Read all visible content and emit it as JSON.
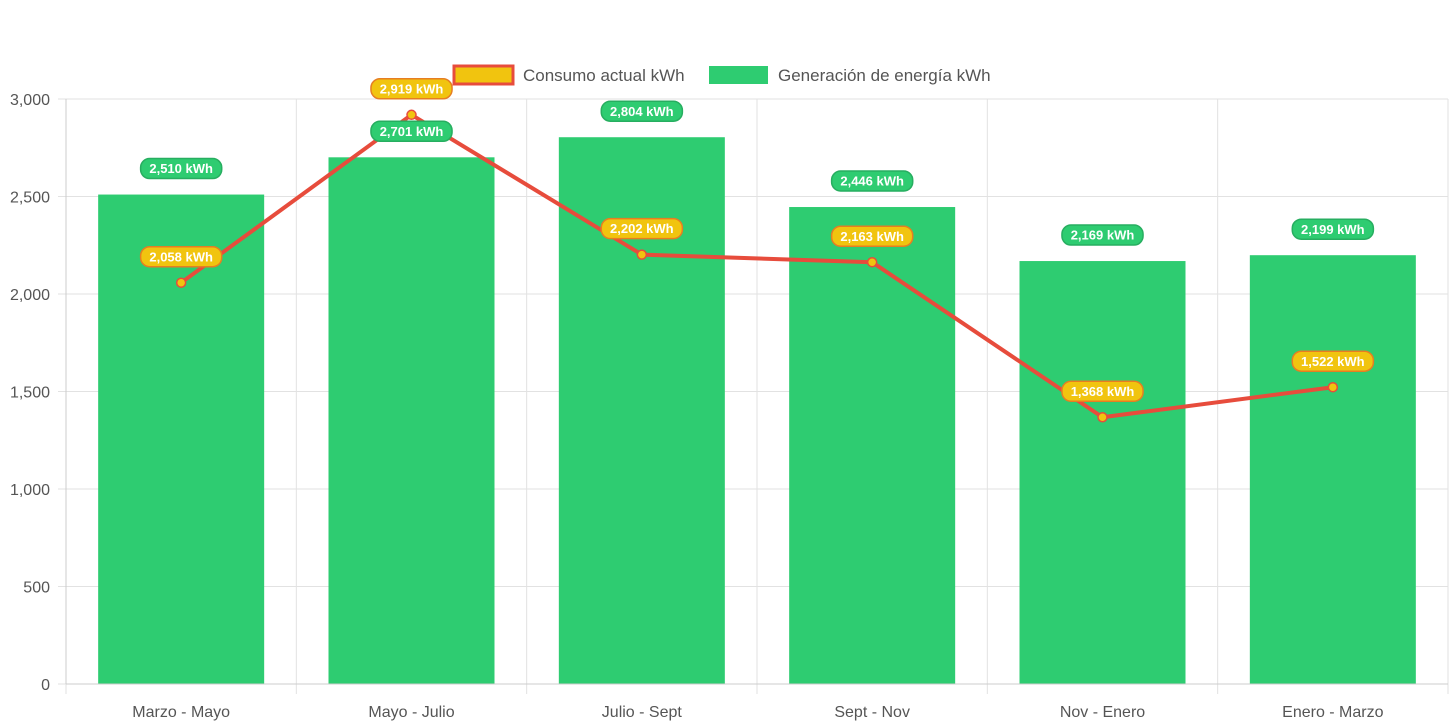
{
  "chart_data": {
    "type": "bar",
    "categories": [
      "Marzo - Mayo",
      "Mayo - Julio",
      "Julio - Sept",
      "Sept - Nov",
      "Nov - Enero",
      "Enero - Marzo"
    ],
    "series": [
      {
        "name": "Generación de energía kWh",
        "type": "bar",
        "values": [
          2510,
          2701,
          2804,
          2446,
          2169,
          2199
        ],
        "labels": [
          "2,510 kWh",
          "2,701 kWh",
          "2,804 kWh",
          "2,446 kWh",
          "2,169 kWh",
          "2,199 kWh"
        ],
        "color": "#2ecc71"
      },
      {
        "name": "Consumo actual kWh",
        "type": "line",
        "values": [
          2058,
          2919,
          2202,
          2163,
          1368,
          1522
        ],
        "labels": [
          "2,058 kWh",
          "2,919 kWh",
          "2,202 kWh",
          "2,163 kWh",
          "1,368 kWh",
          "1,522 kWh"
        ],
        "color": "#e74c3c",
        "point_color": "#f1c40f"
      }
    ],
    "y_ticks": [
      "0",
      "500",
      "1,000",
      "1,500",
      "2,000",
      "2,500",
      "3,000"
    ],
    "ylim": [
      0,
      3000
    ],
    "grid": true,
    "legend_position": "top-center"
  }
}
